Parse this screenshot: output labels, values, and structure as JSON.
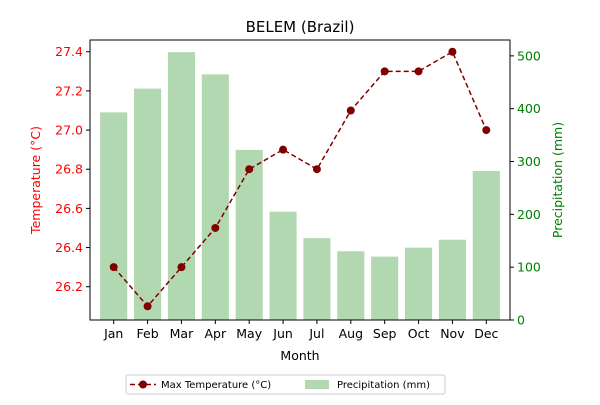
{
  "chart_data": {
    "type": "bar+line",
    "title": "BELEM (Brazil)",
    "xlabel": "Month",
    "categories": [
      "Jan",
      "Feb",
      "Mar",
      "Apr",
      "May",
      "Jun",
      "Jul",
      "Aug",
      "Sep",
      "Oct",
      "Nov",
      "Dec"
    ],
    "temperature": {
      "name": "Max Temperature (°C)",
      "axis_label": "Temperature (°C)",
      "values": [
        26.3,
        26.1,
        26.3,
        26.5,
        26.8,
        26.9,
        26.8,
        27.1,
        27.3,
        27.3,
        27.4,
        27.0
      ],
      "ylim": [
        26.03,
        27.46
      ],
      "ticks": [
        "26.2",
        "26.4",
        "26.6",
        "26.8",
        "27.0",
        "27.2",
        "27.4"
      ],
      "color": "#800000",
      "axis_color": "#ff0000"
    },
    "precipitation": {
      "name": "Precipitation (mm)",
      "axis_label": "Precipitation (mm)",
      "values": [
        393,
        438,
        507,
        465,
        322,
        205,
        155,
        130,
        120,
        137,
        152,
        282
      ],
      "ylim": [
        0,
        530
      ],
      "ticks": [
        "0",
        "100",
        "200",
        "300",
        "400",
        "500"
      ],
      "color": "#b2d8b2",
      "axis_color": "#008000"
    },
    "legend": {
      "placement": "bottom-center"
    },
    "grid": false
  }
}
